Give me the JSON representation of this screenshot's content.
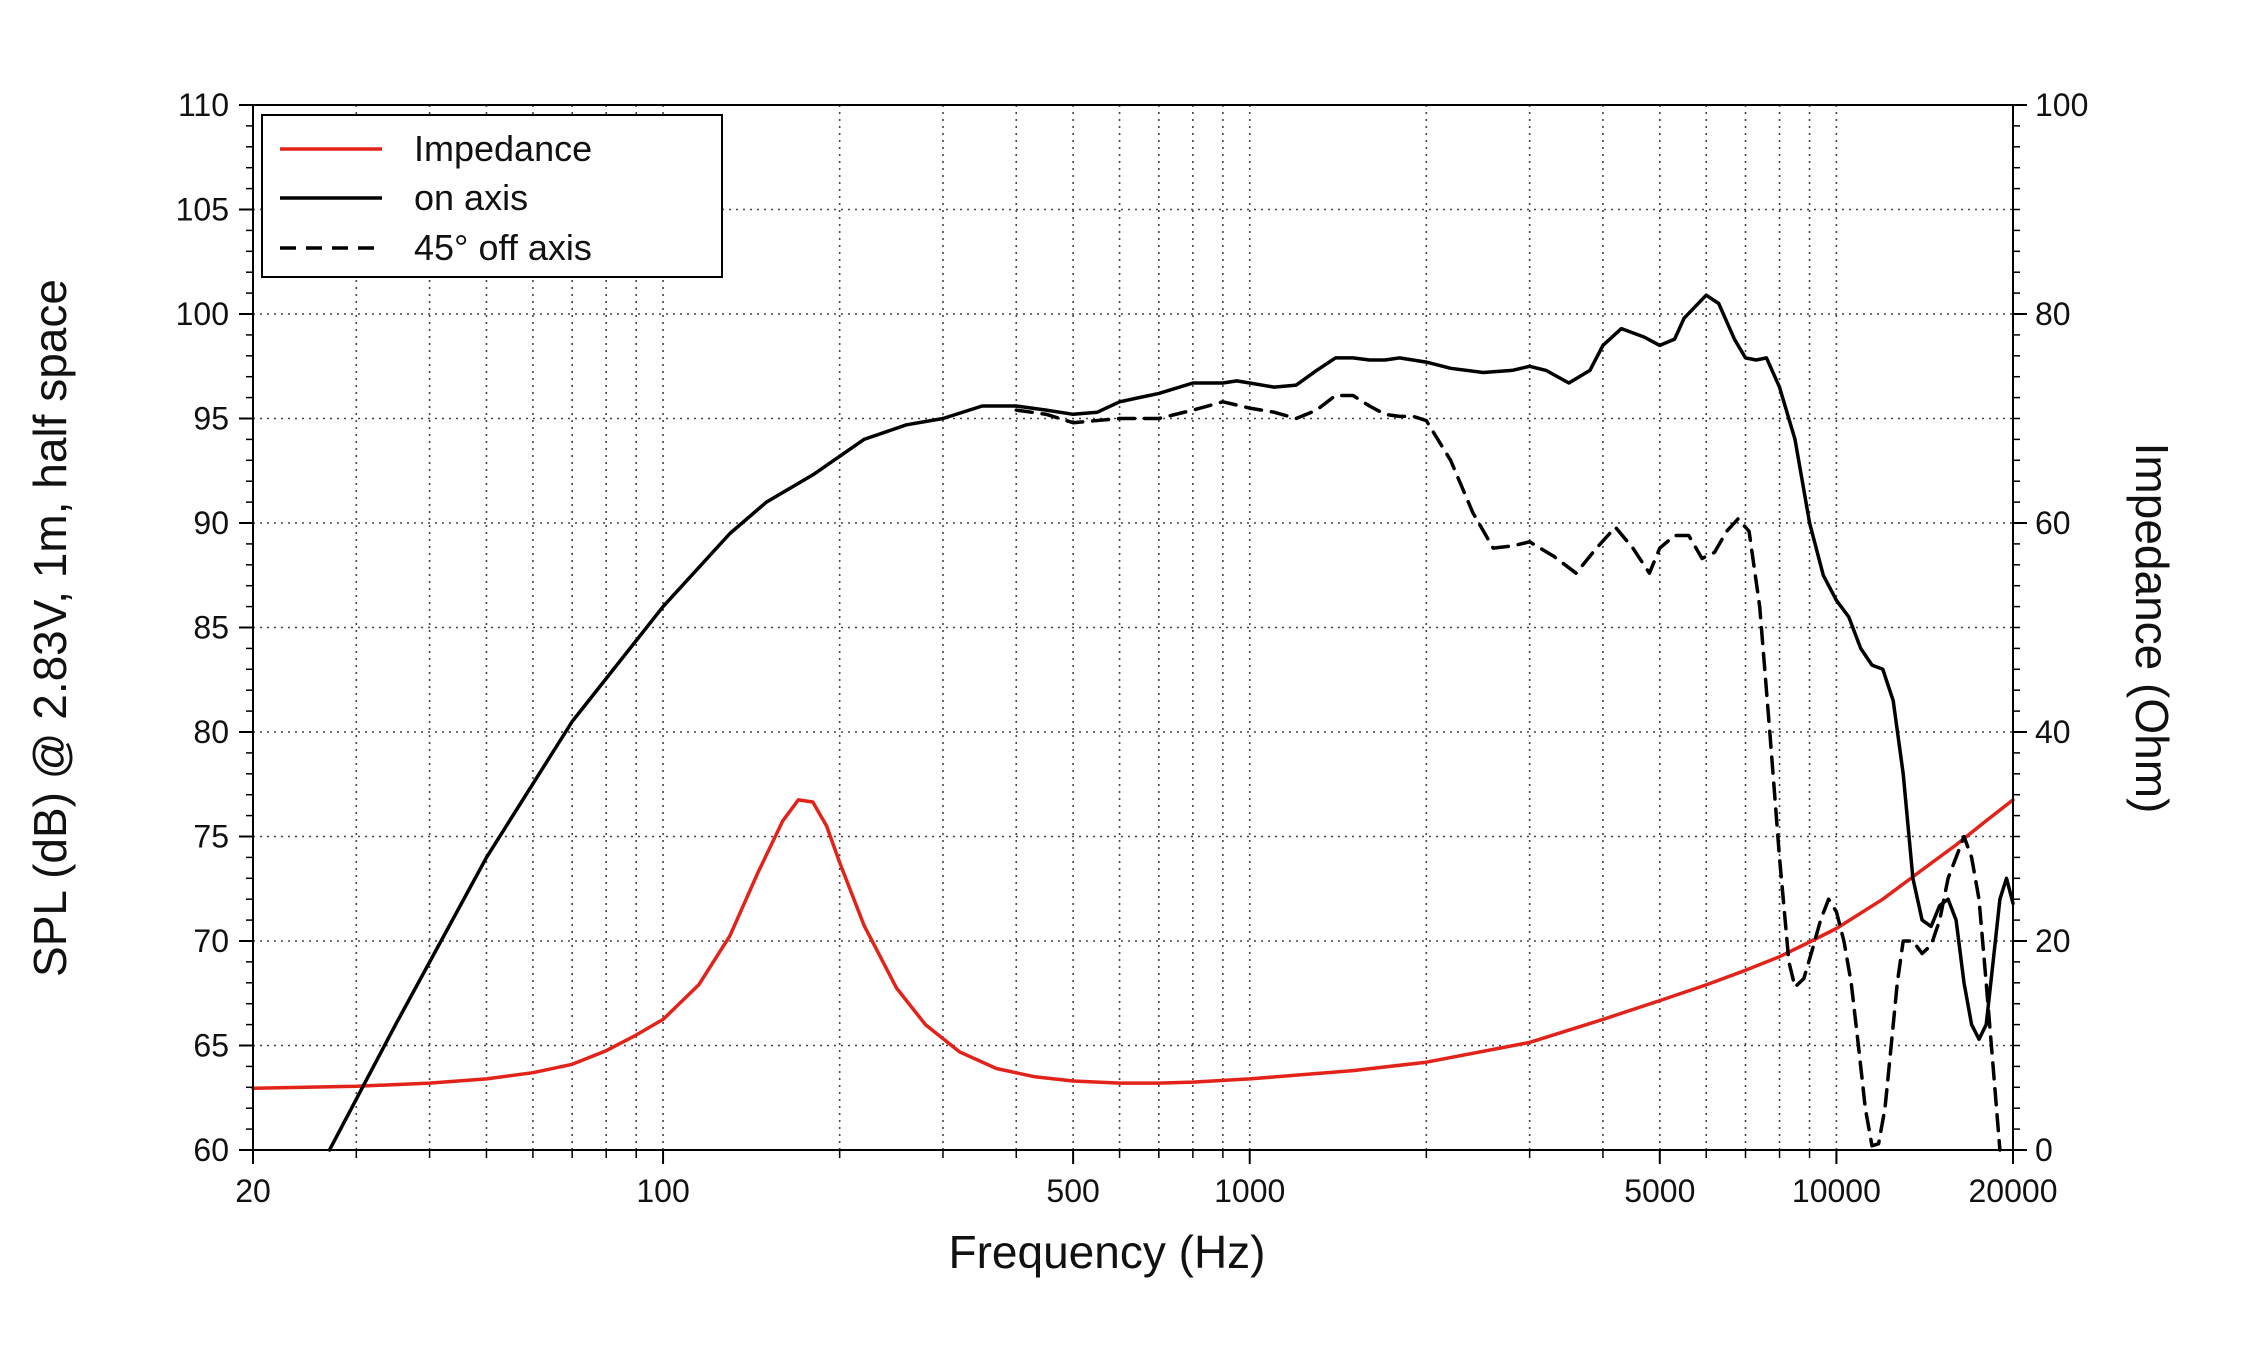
{
  "chart_data": {
    "type": "line",
    "xlabel": "Frequency (Hz)",
    "ylabel_left": "SPL (dB) @ 2.83V, 1m, half space",
    "ylabel_right": "Impedance (Ohm)",
    "x_scale": "log",
    "xlim": [
      20,
      20000
    ],
    "ylim_left": [
      60,
      110
    ],
    "ylim_right": [
      0,
      100
    ],
    "x_ticks": [
      20,
      100,
      500,
      1000,
      5000,
      10000,
      20000
    ],
    "x_tick_labels": [
      "20",
      "100",
      "500",
      "1000",
      "5000",
      "10000",
      "20000"
    ],
    "y_left_ticks": [
      60,
      65,
      70,
      75,
      80,
      85,
      90,
      95,
      100,
      105,
      110
    ],
    "y_left_tick_labels": [
      "60",
      "65",
      "70",
      "75",
      "80",
      "85",
      "90",
      "95",
      "100",
      "105",
      "110"
    ],
    "y_right_ticks": [
      0,
      20,
      40,
      60,
      80,
      100
    ],
    "y_right_tick_labels": [
      "0",
      "20",
      "40",
      "60",
      "80",
      "100"
    ],
    "grid": true,
    "grid_style": "dotted",
    "legend_position": "top-left",
    "series": [
      {
        "name": "Impedance",
        "axis": "right",
        "color": "#e2231a",
        "dash": "solid",
        "points": [
          [
            20,
            5.9
          ],
          [
            30,
            6.1
          ],
          [
            40,
            6.4
          ],
          [
            50,
            6.8
          ],
          [
            60,
            7.4
          ],
          [
            70,
            8.2
          ],
          [
            80,
            9.5
          ],
          [
            90,
            11.0
          ],
          [
            100,
            12.5
          ],
          [
            115,
            15.8
          ],
          [
            130,
            20.5
          ],
          [
            145,
            26.5
          ],
          [
            160,
            31.5
          ],
          [
            170,
            33.5
          ],
          [
            180,
            33.3
          ],
          [
            190,
            31.0
          ],
          [
            200,
            27.5
          ],
          [
            220,
            21.5
          ],
          [
            250,
            15.5
          ],
          [
            280,
            12.0
          ],
          [
            320,
            9.4
          ],
          [
            370,
            7.8
          ],
          [
            430,
            7.0
          ],
          [
            500,
            6.6
          ],
          [
            600,
            6.4
          ],
          [
            700,
            6.4
          ],
          [
            800,
            6.5
          ],
          [
            1000,
            6.8
          ],
          [
            1500,
            7.6
          ],
          [
            2000,
            8.4
          ],
          [
            3000,
            10.3
          ],
          [
            4000,
            12.5
          ],
          [
            5000,
            14.3
          ],
          [
            6000,
            15.8
          ],
          [
            7000,
            17.2
          ],
          [
            8000,
            18.5
          ],
          [
            9000,
            19.9
          ],
          [
            10000,
            21.2
          ],
          [
            12000,
            24.0
          ],
          [
            14000,
            26.8
          ],
          [
            16000,
            29.2
          ],
          [
            18000,
            31.5
          ],
          [
            20000,
            33.5
          ]
        ]
      },
      {
        "name": "on axis",
        "axis": "left",
        "color": "#000000",
        "dash": "solid",
        "points": [
          [
            27,
            60
          ],
          [
            35,
            66
          ],
          [
            50,
            74
          ],
          [
            70,
            80.5
          ],
          [
            100,
            86
          ],
          [
            130,
            89.5
          ],
          [
            150,
            91
          ],
          [
            180,
            92.3
          ],
          [
            220,
            94
          ],
          [
            260,
            94.7
          ],
          [
            300,
            95
          ],
          [
            350,
            95.6
          ],
          [
            400,
            95.6
          ],
          [
            450,
            95.4
          ],
          [
            500,
            95.2
          ],
          [
            550,
            95.3
          ],
          [
            600,
            95.8
          ],
          [
            700,
            96.2
          ],
          [
            800,
            96.7
          ],
          [
            900,
            96.7
          ],
          [
            950,
            96.8
          ],
          [
            1000,
            96.7
          ],
          [
            1100,
            96.5
          ],
          [
            1200,
            96.6
          ],
          [
            1300,
            97.3
          ],
          [
            1400,
            97.9
          ],
          [
            1500,
            97.9
          ],
          [
            1600,
            97.8
          ],
          [
            1700,
            97.8
          ],
          [
            1800,
            97.9
          ],
          [
            2000,
            97.7
          ],
          [
            2200,
            97.4
          ],
          [
            2500,
            97.2
          ],
          [
            2800,
            97.3
          ],
          [
            3000,
            97.5
          ],
          [
            3200,
            97.3
          ],
          [
            3500,
            96.7
          ],
          [
            3800,
            97.3
          ],
          [
            4000,
            98.5
          ],
          [
            4300,
            99.3
          ],
          [
            4700,
            98.9
          ],
          [
            5000,
            98.5
          ],
          [
            5300,
            98.8
          ],
          [
            5500,
            99.8
          ],
          [
            6000,
            100.9
          ],
          [
            6300,
            100.5
          ],
          [
            6700,
            98.8
          ],
          [
            7000,
            97.9
          ],
          [
            7300,
            97.8
          ],
          [
            7600,
            97.9
          ],
          [
            8000,
            96.5
          ],
          [
            8500,
            94
          ],
          [
            9000,
            90
          ],
          [
            9500,
            87.5
          ],
          [
            10000,
            86.3
          ],
          [
            10500,
            85.5
          ],
          [
            11000,
            84
          ],
          [
            11500,
            83.2
          ],
          [
            12000,
            83
          ],
          [
            12500,
            81.5
          ],
          [
            13000,
            78
          ],
          [
            13500,
            73
          ],
          [
            14000,
            71
          ],
          [
            14500,
            70.7
          ],
          [
            15000,
            71.7
          ],
          [
            15500,
            72
          ],
          [
            16000,
            71
          ],
          [
            16500,
            68
          ],
          [
            17000,
            66
          ],
          [
            17500,
            65.3
          ],
          [
            18000,
            66
          ],
          [
            18500,
            69
          ],
          [
            19000,
            72
          ],
          [
            19500,
            73
          ],
          [
            20000,
            71.8
          ]
        ]
      },
      {
        "name": "45° off axis",
        "axis": "left",
        "color": "#000000",
        "dash": "dashed",
        "points": [
          [
            400,
            95.4
          ],
          [
            450,
            95.2
          ],
          [
            500,
            94.8
          ],
          [
            600,
            95
          ],
          [
            700,
            95
          ],
          [
            800,
            95.4
          ],
          [
            900,
            95.8
          ],
          [
            1000,
            95.5
          ],
          [
            1100,
            95.3
          ],
          [
            1200,
            95
          ],
          [
            1300,
            95.4
          ],
          [
            1400,
            96.1
          ],
          [
            1500,
            96.1
          ],
          [
            1600,
            95.6
          ],
          [
            1700,
            95.2
          ],
          [
            1800,
            95.1
          ],
          [
            1900,
            95.1
          ],
          [
            2000,
            94.9
          ],
          [
            2200,
            93
          ],
          [
            2400,
            90.5
          ],
          [
            2600,
            88.8
          ],
          [
            2800,
            88.9
          ],
          [
            3000,
            89.1
          ],
          [
            3300,
            88.4
          ],
          [
            3600,
            87.6
          ],
          [
            3900,
            88.8
          ],
          [
            4200,
            89.8
          ],
          [
            4500,
            88.8
          ],
          [
            4800,
            87.6
          ],
          [
            5000,
            88.8
          ],
          [
            5300,
            89.4
          ],
          [
            5600,
            89.4
          ],
          [
            5900,
            88.3
          ],
          [
            6200,
            88.6
          ],
          [
            6500,
            89.6
          ],
          [
            6800,
            90.2
          ],
          [
            7100,
            89.6
          ],
          [
            7400,
            86
          ],
          [
            7700,
            80
          ],
          [
            8000,
            74
          ],
          [
            8300,
            69
          ],
          [
            8500,
            67.8
          ],
          [
            8800,
            68.2
          ],
          [
            9100,
            69.6
          ],
          [
            9400,
            71
          ],
          [
            9700,
            72
          ],
          [
            10000,
            71.4
          ],
          [
            10300,
            70
          ],
          [
            10600,
            68
          ],
          [
            10900,
            65
          ],
          [
            11200,
            62
          ],
          [
            11500,
            60.2
          ],
          [
            11800,
            60.3
          ],
          [
            12100,
            62
          ],
          [
            12400,
            65
          ],
          [
            12700,
            68
          ],
          [
            13000,
            70
          ],
          [
            13500,
            70
          ],
          [
            14000,
            69.4
          ],
          [
            14500,
            69.8
          ],
          [
            15000,
            71
          ],
          [
            15500,
            73
          ],
          [
            16000,
            74
          ],
          [
            16500,
            75
          ],
          [
            17000,
            74
          ],
          [
            17500,
            72
          ],
          [
            18000,
            68
          ],
          [
            18500,
            64
          ],
          [
            19000,
            60
          ]
        ]
      }
    ]
  }
}
